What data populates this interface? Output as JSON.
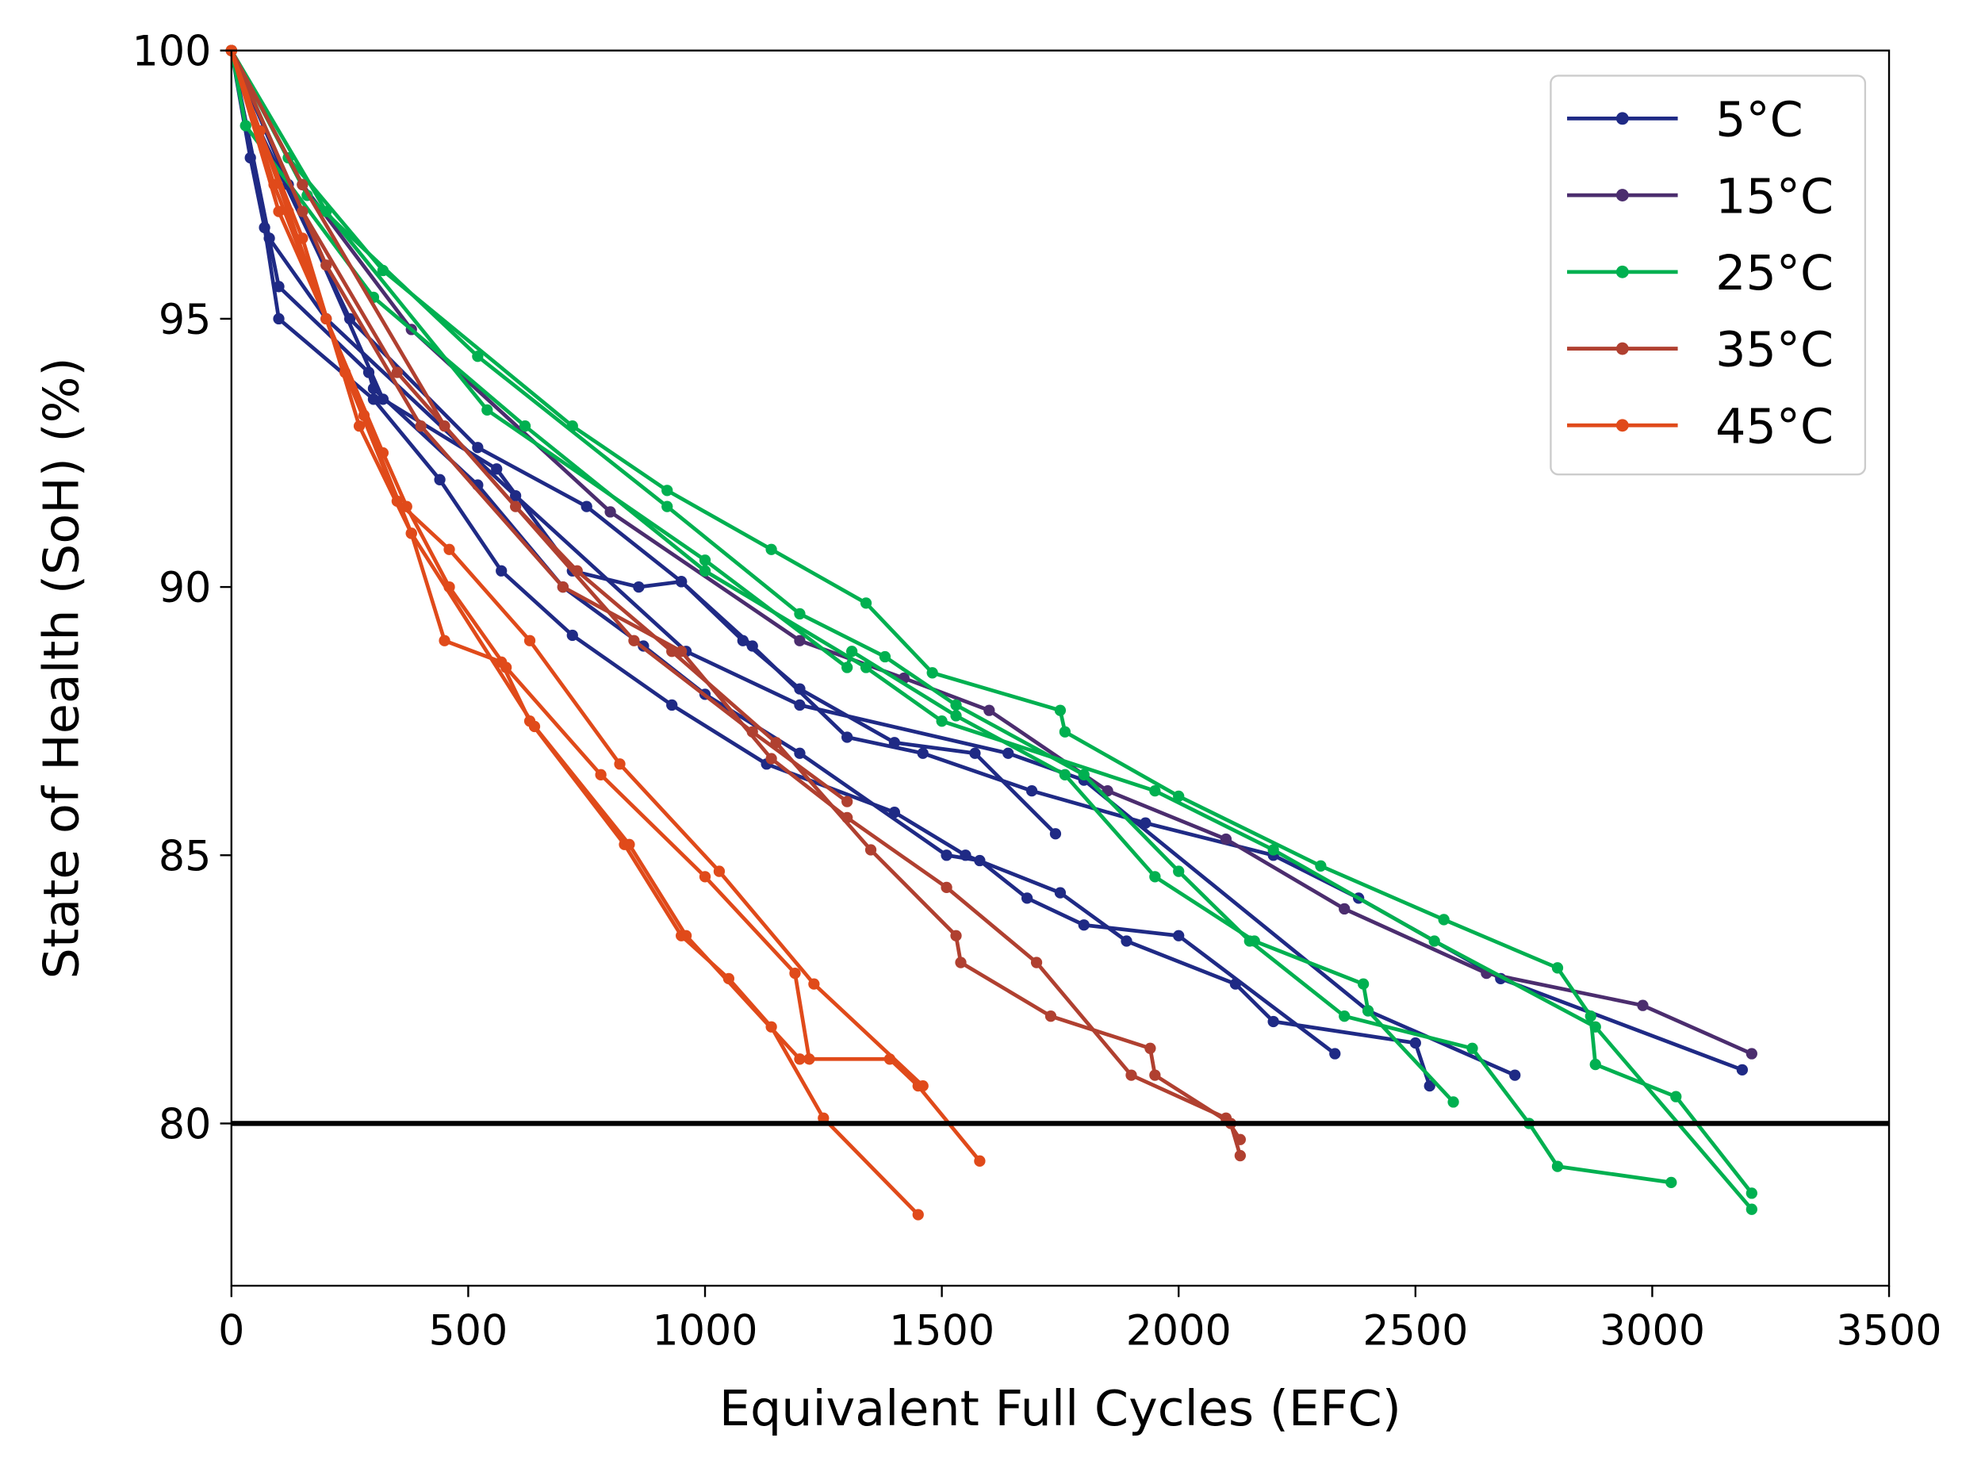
{
  "chart_data": {
    "type": "line",
    "title": "",
    "xlabel": "Equivalent Full Cycles (EFC)",
    "ylabel": "State of Health (SoH) (%)",
    "xlim": [
      0,
      3500
    ],
    "ylim": [
      77,
      100
    ],
    "xticks": [
      0,
      500,
      1000,
      1500,
      2000,
      2500,
      3000,
      3500
    ],
    "yticks": [
      80,
      85,
      90,
      95,
      100
    ],
    "reference_line": {
      "y": 80,
      "color": "#000000"
    },
    "grid": false,
    "legend_position": "top-right",
    "legend": [
      {
        "label": "5°C",
        "color": "#1f2a85"
      },
      {
        "label": "15°C",
        "color": "#4b2d6e"
      },
      {
        "label": "25°C",
        "color": "#00b050"
      },
      {
        "label": "35°C",
        "color": "#b04030"
      },
      {
        "label": "45°C",
        "color": "#e04a1a"
      }
    ],
    "series": [
      {
        "name": "5°C",
        "color": "#1f2a85",
        "points": [
          [
            0,
            100
          ],
          [
            40,
            98.0
          ],
          [
            70,
            96.7
          ],
          [
            100,
            95.0
          ],
          [
            300,
            93.5
          ],
          [
            440,
            92
          ],
          [
            570,
            90.3
          ],
          [
            720,
            89.1
          ],
          [
            930,
            87.8
          ],
          [
            1130,
            86.7
          ],
          [
            1400,
            85.8
          ],
          [
            1550,
            85
          ],
          [
            1750,
            84.3
          ],
          [
            1890,
            83.4
          ],
          [
            2120,
            82.6
          ],
          [
            2200,
            81.9
          ],
          [
            2500,
            81.5
          ],
          [
            2530,
            80.7
          ]
        ]
      },
      {
        "name": "5°C",
        "color": "#1f2a85",
        "points": [
          [
            0,
            100
          ],
          [
            60,
            98.5
          ],
          [
            250,
            95
          ],
          [
            520,
            92.6
          ],
          [
            750,
            91.5
          ],
          [
            950,
            90.1
          ],
          [
            1100,
            88.9
          ],
          [
            1300,
            87.2
          ],
          [
            1460,
            86.9
          ],
          [
            1690,
            86.2
          ],
          [
            1930,
            85.6
          ],
          [
            2200,
            85.0
          ],
          [
            2380,
            84.2
          ],
          [
            2680,
            82.7
          ],
          [
            3190,
            81
          ]
        ]
      },
      {
        "name": "5°C",
        "color": "#1f2a85",
        "points": [
          [
            0,
            100
          ],
          [
            100,
            95.6
          ],
          [
            290,
            94
          ],
          [
            300,
            93.7
          ],
          [
            520,
            91.9
          ],
          [
            700,
            90
          ],
          [
            870,
            88.9
          ],
          [
            1000,
            88
          ],
          [
            1200,
            86.9
          ],
          [
            1510,
            85
          ],
          [
            1580,
            84.9
          ],
          [
            1680,
            84.2
          ],
          [
            1800,
            83.7
          ],
          [
            2000,
            83.5
          ],
          [
            2330,
            81.3
          ]
        ]
      },
      {
        "name": "5°C",
        "color": "#1f2a85",
        "points": [
          [
            0,
            100
          ],
          [
            120,
            97.5
          ],
          [
            320,
            93.5
          ],
          [
            560,
            92.2
          ],
          [
            720,
            90.3
          ],
          [
            860,
            90.0
          ],
          [
            950,
            90.1
          ],
          [
            1080,
            89
          ],
          [
            1200,
            88.1
          ],
          [
            1400,
            87.1
          ],
          [
            1570,
            86.9
          ],
          [
            1740,
            85.4
          ]
        ]
      },
      {
        "name": "5°C",
        "color": "#1f2a85",
        "points": [
          [
            0,
            100
          ],
          [
            80,
            96.5
          ],
          [
            200,
            95
          ],
          [
            600,
            91.7
          ],
          [
            960,
            88.8
          ],
          [
            1200,
            87.8
          ],
          [
            1640,
            86.9
          ],
          [
            1800,
            86.4
          ],
          [
            2400,
            82.1
          ],
          [
            2710,
            80.9
          ]
        ]
      },
      {
        "name": "15°C",
        "color": "#4b2d6e",
        "points": [
          [
            0,
            100
          ],
          [
            150,
            97.5
          ],
          [
            380,
            94.8
          ],
          [
            800,
            91.4
          ],
          [
            1200,
            89
          ],
          [
            1420,
            88.3
          ],
          [
            1600,
            87.7
          ],
          [
            1850,
            86.2
          ],
          [
            2100,
            85.3
          ],
          [
            2350,
            84
          ],
          [
            2650,
            82.8
          ],
          [
            2980,
            82.2
          ],
          [
            3210,
            81.3
          ]
        ]
      },
      {
        "name": "25°C",
        "color": "#00b050",
        "points": [
          [
            0,
            100
          ],
          [
            120,
            98
          ],
          [
            320,
            95.9
          ],
          [
            720,
            93
          ],
          [
            920,
            91.8
          ],
          [
            1140,
            90.7
          ],
          [
            1340,
            89.7
          ],
          [
            1480,
            88.4
          ],
          [
            1750,
            87.7
          ],
          [
            1760,
            87.3
          ],
          [
            2000,
            86.1
          ],
          [
            2300,
            84.8
          ],
          [
            2560,
            83.8
          ],
          [
            2800,
            82.9
          ],
          [
            2870,
            82
          ],
          [
            2880,
            81.1
          ],
          [
            3050,
            80.5
          ],
          [
            3210,
            78.7
          ]
        ]
      },
      {
        "name": "25°C",
        "color": "#00b050",
        "points": [
          [
            0,
            100
          ],
          [
            160,
            97.3
          ],
          [
            520,
            94.3
          ],
          [
            920,
            91.5
          ],
          [
            1200,
            89.5
          ],
          [
            1380,
            88.7
          ],
          [
            1530,
            87.8
          ],
          [
            1800,
            86.5
          ],
          [
            2000,
            84.7
          ],
          [
            2150,
            83.4
          ],
          [
            2350,
            82
          ],
          [
            2620,
            81.4
          ],
          [
            2740,
            80
          ],
          [
            2800,
            79.2
          ],
          [
            3040,
            78.9
          ]
        ]
      },
      {
        "name": "25°C",
        "color": "#00b050",
        "points": [
          [
            0,
            100
          ],
          [
            200,
            97
          ],
          [
            540,
            93.3
          ],
          [
            1000,
            90.5
          ],
          [
            1300,
            88.5
          ],
          [
            1310,
            88.8
          ],
          [
            1530,
            87.6
          ],
          [
            1760,
            86.5
          ],
          [
            1950,
            84.6
          ],
          [
            2160,
            83.4
          ],
          [
            2390,
            82.6
          ],
          [
            2400,
            82.1
          ],
          [
            2580,
            80.4
          ]
        ]
      },
      {
        "name": "25°C",
        "color": "#00b050",
        "points": [
          [
            0,
            100
          ],
          [
            30,
            98.6
          ],
          [
            300,
            95.4
          ],
          [
            620,
            93
          ],
          [
            1000,
            90.3
          ],
          [
            1340,
            88.5
          ],
          [
            1500,
            87.5
          ],
          [
            1950,
            86.2
          ],
          [
            2200,
            85.1
          ],
          [
            2540,
            83.4
          ],
          [
            2880,
            81.8
          ],
          [
            3210,
            78.4
          ]
        ]
      },
      {
        "name": "35°C",
        "color": "#b04030",
        "points": [
          [
            0,
            100
          ],
          [
            150,
            97
          ],
          [
            350,
            94
          ],
          [
            600,
            91.5
          ],
          [
            730,
            90.3
          ],
          [
            930,
            88.8
          ],
          [
            1150,
            87.1
          ],
          [
            1350,
            85.1
          ],
          [
            1530,
            83.5
          ],
          [
            1540,
            83
          ],
          [
            1730,
            82
          ],
          [
            1940,
            81.4
          ],
          [
            1950,
            80.9
          ],
          [
            2110,
            80
          ],
          [
            2130,
            79.4
          ]
        ]
      },
      {
        "name": "35°C",
        "color": "#b04030",
        "points": [
          [
            0,
            100
          ],
          [
            200,
            96
          ],
          [
            400,
            93
          ],
          [
            700,
            90
          ],
          [
            950,
            88.8
          ],
          [
            1140,
            86.8
          ],
          [
            1300,
            85.7
          ],
          [
            1510,
            84.4
          ],
          [
            1700,
            83
          ],
          [
            1900,
            80.9
          ],
          [
            2100,
            80.1
          ],
          [
            2130,
            79.7
          ]
        ]
      },
      {
        "name": "35°C",
        "color": "#b04030",
        "points": [
          [
            0,
            100
          ],
          [
            150,
            97.5
          ],
          [
            450,
            93
          ],
          [
            850,
            89
          ],
          [
            1100,
            87.3
          ],
          [
            1300,
            86
          ]
        ]
      },
      {
        "name": "45°C",
        "color": "#e04a1a",
        "points": [
          [
            0,
            100
          ],
          [
            60,
            98.5
          ],
          [
            150,
            96.5
          ],
          [
            270,
            93
          ],
          [
            380,
            91
          ],
          [
            450,
            89
          ],
          [
            570,
            88.6
          ],
          [
            630,
            87.5
          ],
          [
            830,
            85.2
          ],
          [
            950,
            83.5
          ],
          [
            1050,
            82.7
          ],
          [
            1140,
            81.8
          ],
          [
            1250,
            80.1
          ],
          [
            1450,
            78.3
          ]
        ]
      },
      {
        "name": "45°C",
        "color": "#e04a1a",
        "points": [
          [
            0,
            100
          ],
          [
            100,
            97
          ],
          [
            200,
            95
          ],
          [
            320,
            92.5
          ],
          [
            370,
            91.5
          ],
          [
            460,
            90
          ],
          [
            580,
            88.5
          ],
          [
            780,
            86.5
          ],
          [
            1000,
            84.6
          ],
          [
            1190,
            82.8
          ],
          [
            1220,
            81.2
          ]
        ]
      },
      {
        "name": "45°C",
        "color": "#e04a1a",
        "points": [
          [
            0,
            100
          ],
          [
            120,
            97
          ],
          [
            240,
            94
          ],
          [
            350,
            91.6
          ],
          [
            460,
            90.7
          ],
          [
            630,
            89
          ],
          [
            820,
            86.7
          ],
          [
            1030,
            84.7
          ],
          [
            1230,
            82.6
          ],
          [
            1460,
            80.7
          ]
        ]
      },
      {
        "name": "45°C",
        "color": "#e04a1a",
        "points": [
          [
            0,
            100
          ],
          [
            90,
            97.5
          ],
          [
            280,
            93.2
          ],
          [
            380,
            91
          ],
          [
            640,
            87.4
          ],
          [
            840,
            85.2
          ],
          [
            960,
            83.5
          ],
          [
            1200,
            81.2
          ],
          [
            1390,
            81.2
          ],
          [
            1450,
            80.7
          ],
          [
            1580,
            79.3
          ]
        ]
      }
    ]
  }
}
